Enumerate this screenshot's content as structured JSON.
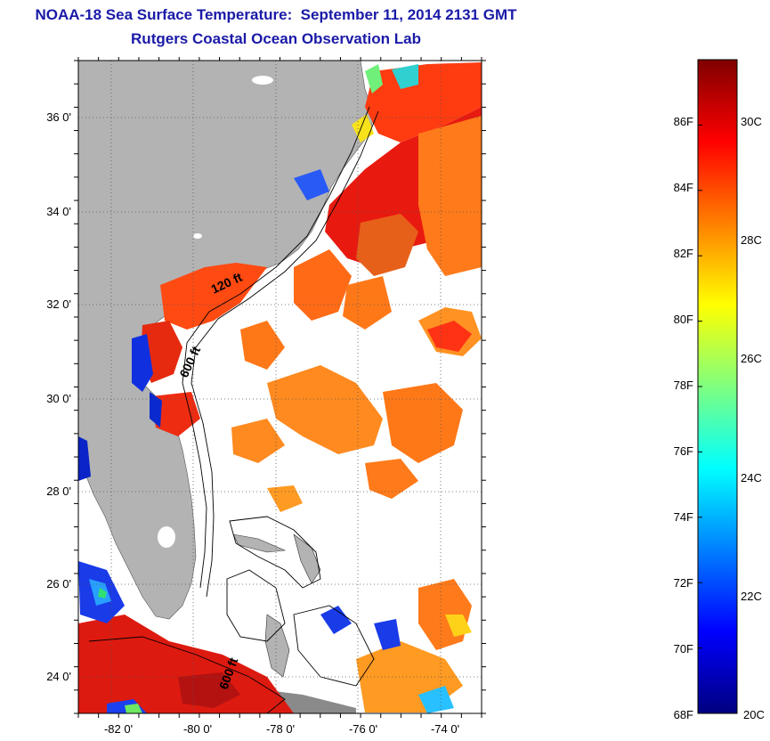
{
  "header": {
    "title": "NOAA-18 Sea Surface Temperature:  September 11, 2014 2131 GMT",
    "subtitle": "Rutgers Coastal Ocean Observation Lab"
  },
  "map": {
    "lon_range": [
      -83,
      -73
    ],
    "lat_range": [
      23,
      37
    ],
    "lon_ticks": [
      "-82 0'",
      "-80 0'",
      "-78 0'",
      "-76 0'",
      "-74 0'"
    ],
    "lat_ticks": [
      "36 0'",
      "34 0'",
      "32 0'",
      "30 0'",
      "28 0'",
      "26 0'",
      "24 0'"
    ],
    "contour_labels": [
      "120 ft",
      "600 ft",
      "600 ft"
    ],
    "land_color": "#b3b3b3",
    "no_data_color": "#ffffff"
  },
  "colorbar": {
    "range_f": [
      68,
      88
    ],
    "range_c": [
      20,
      31
    ],
    "fahrenheit_labels": [
      "86F",
      "84F",
      "82F",
      "80F",
      "78F",
      "76F",
      "74F",
      "72F",
      "70F",
      "68F"
    ],
    "celsius_labels": [
      "30C",
      "28C",
      "26C",
      "24C",
      "22C",
      "20C"
    ],
    "colormap": [
      "#00007f",
      "#0000ff",
      "#007fff",
      "#00ffff",
      "#7fff7f",
      "#ffff00",
      "#ff7f00",
      "#ff0000",
      "#7f0000"
    ]
  }
}
